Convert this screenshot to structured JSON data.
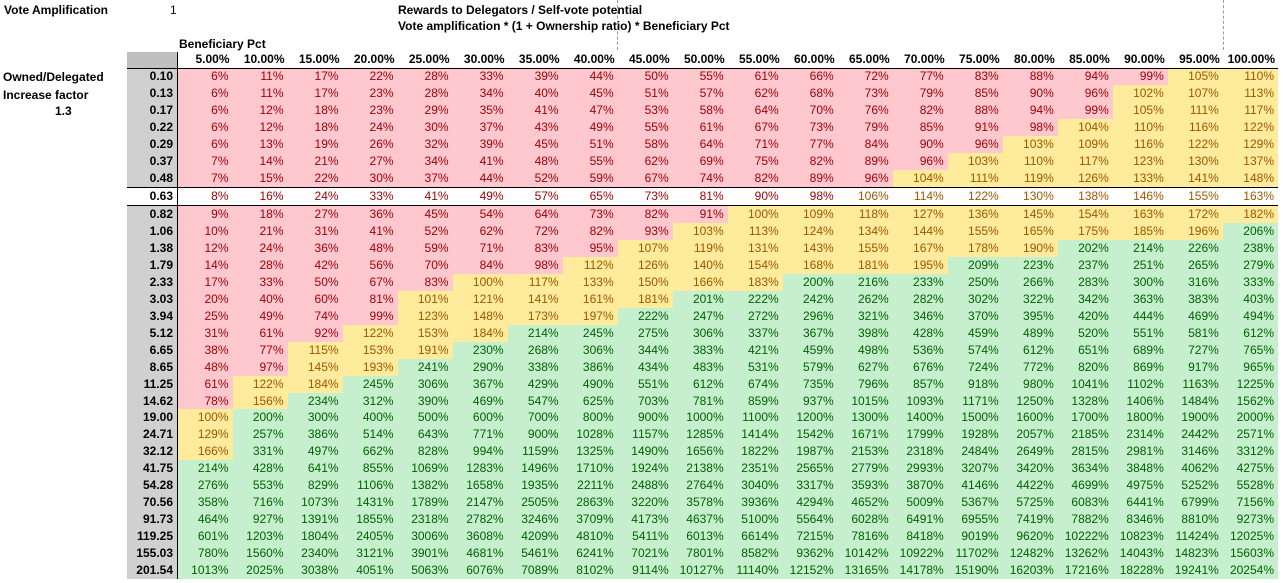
{
  "labels": {
    "vote_amp_label": "Vote Amplification",
    "vote_amp_value": "1",
    "title": "Rewards to Delegators / Self-vote potential",
    "formula": "Vote amplification * (1 + Ownership ratio) * Beneficiary Pct",
    "beneficiary_label": "Beneficiary Pct",
    "owned_label": "Owned/Delegated",
    "increase_label": "Increase factor",
    "increase_value": "1.3"
  },
  "columns": [
    "5.00%",
    "10.00%",
    "15.00%",
    "20.00%",
    "25.00%",
    "30.00%",
    "35.00%",
    "40.00%",
    "45.00%",
    "50.00%",
    "55.00%",
    "60.00%",
    "65.00%",
    "70.00%",
    "75.00%",
    "80.00%",
    "85.00%",
    "90.00%",
    "95.00%",
    "100.00%"
  ],
  "highlight_row": 7,
  "colors": {
    "red_bg": "#ffc7ce",
    "red_fg": "#9c0006",
    "yellow_bg": "#ffeb9c",
    "yellow_fg": "#9c5700",
    "green_bg": "#c6efce",
    "green_fg": "#006100"
  },
  "rows": [
    {
      "factor": "0.10",
      "cells": [
        "6%",
        "11%",
        "17%",
        "22%",
        "28%",
        "33%",
        "39%",
        "44%",
        "50%",
        "55%",
        "61%",
        "66%",
        "72%",
        "77%",
        "83%",
        "88%",
        "94%",
        "99%",
        "105%",
        "110%"
      ]
    },
    {
      "factor": "0.13",
      "cells": [
        "6%",
        "11%",
        "17%",
        "23%",
        "28%",
        "34%",
        "40%",
        "45%",
        "51%",
        "57%",
        "62%",
        "68%",
        "73%",
        "79%",
        "85%",
        "90%",
        "96%",
        "102%",
        "107%",
        "113%"
      ]
    },
    {
      "factor": "0.17",
      "cells": [
        "6%",
        "12%",
        "18%",
        "23%",
        "29%",
        "35%",
        "41%",
        "47%",
        "53%",
        "58%",
        "64%",
        "70%",
        "76%",
        "82%",
        "88%",
        "94%",
        "99%",
        "105%",
        "111%",
        "117%"
      ]
    },
    {
      "factor": "0.22",
      "cells": [
        "6%",
        "12%",
        "18%",
        "24%",
        "30%",
        "37%",
        "43%",
        "49%",
        "55%",
        "61%",
        "67%",
        "73%",
        "79%",
        "85%",
        "91%",
        "98%",
        "104%",
        "110%",
        "116%",
        "122%"
      ]
    },
    {
      "factor": "0.29",
      "cells": [
        "6%",
        "13%",
        "19%",
        "26%",
        "32%",
        "39%",
        "45%",
        "51%",
        "58%",
        "64%",
        "71%",
        "77%",
        "84%",
        "90%",
        "96%",
        "103%",
        "109%",
        "116%",
        "122%",
        "129%"
      ]
    },
    {
      "factor": "0.37",
      "cells": [
        "7%",
        "14%",
        "21%",
        "27%",
        "34%",
        "41%",
        "48%",
        "55%",
        "62%",
        "69%",
        "75%",
        "82%",
        "89%",
        "96%",
        "103%",
        "110%",
        "117%",
        "123%",
        "130%",
        "137%"
      ]
    },
    {
      "factor": "0.48",
      "cells": [
        "7%",
        "15%",
        "22%",
        "30%",
        "37%",
        "44%",
        "52%",
        "59%",
        "67%",
        "74%",
        "82%",
        "89%",
        "96%",
        "104%",
        "111%",
        "119%",
        "126%",
        "133%",
        "141%",
        "148%"
      ]
    },
    {
      "factor": "0.63",
      "cells": [
        "8%",
        "16%",
        "24%",
        "33%",
        "41%",
        "49%",
        "57%",
        "65%",
        "73%",
        "81%",
        "90%",
        "98%",
        "106%",
        "114%",
        "122%",
        "130%",
        "138%",
        "146%",
        "155%",
        "163%"
      ]
    },
    {
      "factor": "0.82",
      "cells": [
        "9%",
        "18%",
        "27%",
        "36%",
        "45%",
        "54%",
        "64%",
        "73%",
        "82%",
        "91%",
        "100%",
        "109%",
        "118%",
        "127%",
        "136%",
        "145%",
        "154%",
        "163%",
        "172%",
        "182%"
      ]
    },
    {
      "factor": "1.06",
      "cells": [
        "10%",
        "21%",
        "31%",
        "41%",
        "52%",
        "62%",
        "72%",
        "82%",
        "93%",
        "103%",
        "113%",
        "124%",
        "134%",
        "144%",
        "155%",
        "165%",
        "175%",
        "185%",
        "196%",
        "206%"
      ]
    },
    {
      "factor": "1.38",
      "cells": [
        "12%",
        "24%",
        "36%",
        "48%",
        "59%",
        "71%",
        "83%",
        "95%",
        "107%",
        "119%",
        "131%",
        "143%",
        "155%",
        "167%",
        "178%",
        "190%",
        "202%",
        "214%",
        "226%",
        "238%"
      ]
    },
    {
      "factor": "1.79",
      "cells": [
        "14%",
        "28%",
        "42%",
        "56%",
        "70%",
        "84%",
        "98%",
        "112%",
        "126%",
        "140%",
        "154%",
        "168%",
        "181%",
        "195%",
        "209%",
        "223%",
        "237%",
        "251%",
        "265%",
        "279%"
      ]
    },
    {
      "factor": "2.33",
      "cells": [
        "17%",
        "33%",
        "50%",
        "67%",
        "83%",
        "100%",
        "117%",
        "133%",
        "150%",
        "166%",
        "183%",
        "200%",
        "216%",
        "233%",
        "250%",
        "266%",
        "283%",
        "300%",
        "316%",
        "333%"
      ]
    },
    {
      "factor": "3.03",
      "cells": [
        "20%",
        "40%",
        "60%",
        "81%",
        "101%",
        "121%",
        "141%",
        "161%",
        "181%",
        "201%",
        "222%",
        "242%",
        "262%",
        "282%",
        "302%",
        "322%",
        "342%",
        "363%",
        "383%",
        "403%"
      ]
    },
    {
      "factor": "3.94",
      "cells": [
        "25%",
        "49%",
        "74%",
        "99%",
        "123%",
        "148%",
        "173%",
        "197%",
        "222%",
        "247%",
        "272%",
        "296%",
        "321%",
        "346%",
        "370%",
        "395%",
        "420%",
        "444%",
        "469%",
        "494%"
      ]
    },
    {
      "factor": "5.12",
      "cells": [
        "31%",
        "61%",
        "92%",
        "122%",
        "153%",
        "184%",
        "214%",
        "245%",
        "275%",
        "306%",
        "337%",
        "367%",
        "398%",
        "428%",
        "459%",
        "489%",
        "520%",
        "551%",
        "581%",
        "612%"
      ]
    },
    {
      "factor": "6.65",
      "cells": [
        "38%",
        "77%",
        "115%",
        "153%",
        "191%",
        "230%",
        "268%",
        "306%",
        "344%",
        "383%",
        "421%",
        "459%",
        "498%",
        "536%",
        "574%",
        "612%",
        "651%",
        "689%",
        "727%",
        "765%"
      ]
    },
    {
      "factor": "8.65",
      "cells": [
        "48%",
        "97%",
        "145%",
        "193%",
        "241%",
        "290%",
        "338%",
        "386%",
        "434%",
        "483%",
        "531%",
        "579%",
        "627%",
        "676%",
        "724%",
        "772%",
        "820%",
        "869%",
        "917%",
        "965%"
      ]
    },
    {
      "factor": "11.25",
      "cells": [
        "61%",
        "122%",
        "184%",
        "245%",
        "306%",
        "367%",
        "429%",
        "490%",
        "551%",
        "612%",
        "674%",
        "735%",
        "796%",
        "857%",
        "918%",
        "980%",
        "1041%",
        "1102%",
        "1163%",
        "1225%"
      ]
    },
    {
      "factor": "14.62",
      "cells": [
        "78%",
        "156%",
        "234%",
        "312%",
        "390%",
        "469%",
        "547%",
        "625%",
        "703%",
        "781%",
        "859%",
        "937%",
        "1015%",
        "1093%",
        "1171%",
        "1250%",
        "1328%",
        "1406%",
        "1484%",
        "1562%"
      ]
    },
    {
      "factor": "19.00",
      "cells": [
        "100%",
        "200%",
        "300%",
        "400%",
        "500%",
        "600%",
        "700%",
        "800%",
        "900%",
        "1000%",
        "1100%",
        "1200%",
        "1300%",
        "1400%",
        "1500%",
        "1600%",
        "1700%",
        "1800%",
        "1900%",
        "2000%"
      ]
    },
    {
      "factor": "24.71",
      "cells": [
        "129%",
        "257%",
        "386%",
        "514%",
        "643%",
        "771%",
        "900%",
        "1028%",
        "1157%",
        "1285%",
        "1414%",
        "1542%",
        "1671%",
        "1799%",
        "1928%",
        "2057%",
        "2185%",
        "2314%",
        "2442%",
        "2571%"
      ]
    },
    {
      "factor": "32.12",
      "cells": [
        "166%",
        "331%",
        "497%",
        "662%",
        "828%",
        "994%",
        "1159%",
        "1325%",
        "1490%",
        "1656%",
        "1822%",
        "1987%",
        "2153%",
        "2318%",
        "2484%",
        "2649%",
        "2815%",
        "2981%",
        "3146%",
        "3312%"
      ]
    },
    {
      "factor": "41.75",
      "cells": [
        "214%",
        "428%",
        "641%",
        "855%",
        "1069%",
        "1283%",
        "1496%",
        "1710%",
        "1924%",
        "2138%",
        "2351%",
        "2565%",
        "2779%",
        "2993%",
        "3207%",
        "3420%",
        "3634%",
        "3848%",
        "4062%",
        "4275%"
      ]
    },
    {
      "factor": "54.28",
      "cells": [
        "276%",
        "553%",
        "829%",
        "1106%",
        "1382%",
        "1658%",
        "1935%",
        "2211%",
        "2488%",
        "2764%",
        "3040%",
        "3317%",
        "3593%",
        "3870%",
        "4146%",
        "4422%",
        "4699%",
        "4975%",
        "5252%",
        "5528%"
      ]
    },
    {
      "factor": "70.56",
      "cells": [
        "358%",
        "716%",
        "1073%",
        "1431%",
        "1789%",
        "2147%",
        "2505%",
        "2863%",
        "3220%",
        "3578%",
        "3936%",
        "4294%",
        "4652%",
        "5009%",
        "5367%",
        "5725%",
        "6083%",
        "6441%",
        "6799%",
        "7156%"
      ]
    },
    {
      "factor": "91.73",
      "cells": [
        "464%",
        "927%",
        "1391%",
        "1855%",
        "2318%",
        "2782%",
        "3246%",
        "3709%",
        "4173%",
        "4637%",
        "5100%",
        "5564%",
        "6028%",
        "6491%",
        "6955%",
        "7419%",
        "7882%",
        "8346%",
        "8810%",
        "9273%"
      ]
    },
    {
      "factor": "119.25",
      "cells": [
        "601%",
        "1203%",
        "1804%",
        "2405%",
        "3006%",
        "3608%",
        "4209%",
        "4810%",
        "5411%",
        "6013%",
        "6614%",
        "7215%",
        "7816%",
        "8418%",
        "9019%",
        "9620%",
        "10222%",
        "10823%",
        "11424%",
        "12025%"
      ]
    },
    {
      "factor": "155.03",
      "cells": [
        "780%",
        "1560%",
        "2340%",
        "3121%",
        "3901%",
        "4681%",
        "5461%",
        "6241%",
        "7021%",
        "7801%",
        "8582%",
        "9362%",
        "10142%",
        "10922%",
        "11702%",
        "12482%",
        "13262%",
        "14043%",
        "14823%",
        "15603%"
      ]
    },
    {
      "factor": "201.54",
      "cells": [
        "1013%",
        "2025%",
        "3038%",
        "4051%",
        "5063%",
        "6076%",
        "7089%",
        "8102%",
        "9114%",
        "10127%",
        "11140%",
        "12152%",
        "13165%",
        "14178%",
        "15190%",
        "16203%",
        "17216%",
        "18228%",
        "19241%",
        "20254%"
      ]
    }
  ]
}
